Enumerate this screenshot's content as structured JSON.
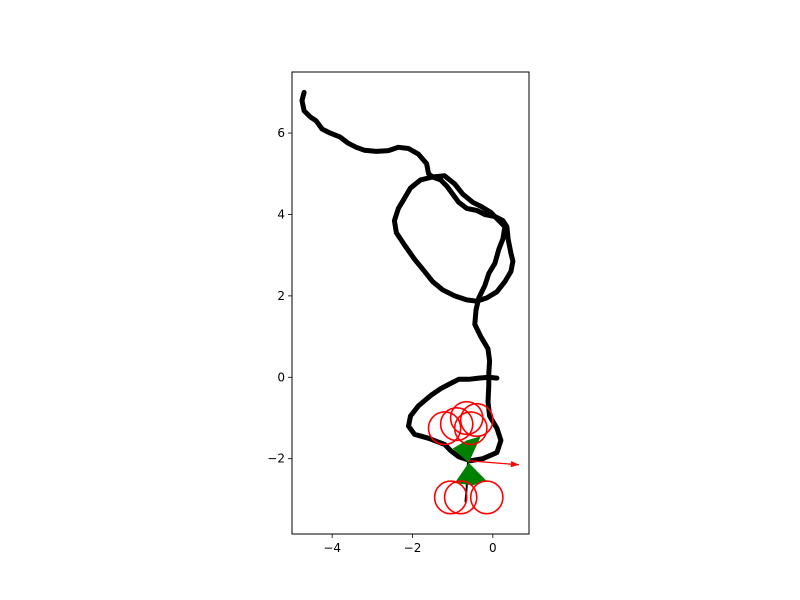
{
  "chart_data": {
    "type": "line",
    "title": "",
    "xlabel": "",
    "ylabel": "",
    "xlim": [
      -5.0,
      0.9
    ],
    "ylim": [
      -3.85,
      7.5
    ],
    "grid": false,
    "legend": "none",
    "x_ticks": [
      {
        "value": -4,
        "label": "−4"
      },
      {
        "value": -2,
        "label": "−2"
      },
      {
        "value": 0,
        "label": "0"
      }
    ],
    "y_ticks": [
      {
        "value": -2,
        "label": "−2"
      },
      {
        "value": 0,
        "label": "0"
      },
      {
        "value": 2,
        "label": "2"
      },
      {
        "value": 4,
        "label": "4"
      },
      {
        "value": 6,
        "label": "6"
      }
    ],
    "trajectory": {
      "color": "#000000",
      "points": [
        [
          -4.7,
          7.0
        ],
        [
          -4.75,
          6.8
        ],
        [
          -4.7,
          6.55
        ],
        [
          -4.55,
          6.4
        ],
        [
          -4.4,
          6.3
        ],
        [
          -4.25,
          6.1
        ],
        [
          -4.05,
          6.0
        ],
        [
          -3.8,
          5.9
        ],
        [
          -3.6,
          5.75
        ],
        [
          -3.4,
          5.65
        ],
        [
          -3.2,
          5.58
        ],
        [
          -2.9,
          5.55
        ],
        [
          -2.6,
          5.57
        ],
        [
          -2.35,
          5.65
        ],
        [
          -2.1,
          5.62
        ],
        [
          -1.85,
          5.48
        ],
        [
          -1.65,
          5.25
        ],
        [
          -1.6,
          5.0
        ],
        [
          -1.5,
          4.92
        ],
        [
          -1.3,
          4.85
        ],
        [
          -1.15,
          4.7
        ],
        [
          -1.0,
          4.5
        ],
        [
          -0.85,
          4.3
        ],
        [
          -0.65,
          4.15
        ],
        [
          -0.4,
          4.1
        ],
        [
          -0.2,
          4.0
        ],
        [
          0.05,
          3.95
        ],
        [
          0.25,
          3.85
        ],
        [
          0.35,
          3.7
        ],
        [
          0.38,
          3.4
        ],
        [
          0.45,
          3.05
        ],
        [
          0.5,
          2.85
        ],
        [
          0.45,
          2.6
        ],
        [
          0.3,
          2.35
        ],
        [
          0.1,
          2.1
        ],
        [
          -0.15,
          1.95
        ],
        [
          -0.4,
          1.87
        ],
        [
          -0.65,
          1.9
        ],
        [
          -0.95,
          2.0
        ],
        [
          -1.25,
          2.15
        ],
        [
          -1.5,
          2.35
        ],
        [
          -1.7,
          2.6
        ],
        [
          -1.95,
          2.9
        ],
        [
          -2.2,
          3.25
        ],
        [
          -2.4,
          3.55
        ],
        [
          -2.45,
          3.85
        ],
        [
          -2.35,
          4.15
        ],
        [
          -2.2,
          4.4
        ],
        [
          -2.05,
          4.65
        ],
        [
          -1.8,
          4.85
        ],
        [
          -1.5,
          4.92
        ],
        [
          -1.2,
          4.95
        ],
        [
          -0.95,
          4.75
        ],
        [
          -0.75,
          4.5
        ],
        [
          -0.5,
          4.3
        ],
        [
          -0.3,
          4.2
        ],
        [
          -0.05,
          4.05
        ],
        [
          0.15,
          3.85
        ],
        [
          0.3,
          3.7
        ],
        [
          0.25,
          3.4
        ],
        [
          0.15,
          3.15
        ],
        [
          0.05,
          2.8
        ],
        [
          -0.1,
          2.55
        ],
        [
          -0.2,
          2.25
        ],
        [
          -0.35,
          1.95
        ],
        [
          -0.42,
          1.65
        ],
        [
          -0.45,
          1.3
        ],
        [
          -0.3,
          1.0
        ],
        [
          -0.12,
          0.7
        ],
        [
          -0.08,
          0.4
        ],
        [
          -0.1,
          0.1
        ],
        [
          -0.1,
          -0.2
        ],
        [
          -0.12,
          -0.6
        ],
        [
          -0.08,
          -0.95
        ],
        [
          0.1,
          -1.25
        ],
        [
          0.2,
          -1.55
        ],
        [
          0.1,
          -1.85
        ],
        [
          -0.25,
          -2.0
        ],
        [
          -0.55,
          -2.05
        ],
        [
          -0.85,
          -1.95
        ],
        [
          -1.05,
          -1.8
        ],
        [
          -1.2,
          -1.65
        ],
        [
          -1.6,
          -1.5
        ],
        [
          -1.95,
          -1.4
        ],
        [
          -2.1,
          -1.2
        ],
        [
          -2.05,
          -0.95
        ],
        [
          -1.85,
          -0.7
        ],
        [
          -1.55,
          -0.45
        ],
        [
          -1.3,
          -0.28
        ],
        [
          -1.05,
          -0.15
        ],
        [
          -0.85,
          -0.05
        ],
        [
          -0.6,
          -0.05
        ],
        [
          -0.35,
          -0.02
        ],
        [
          -0.1,
          0.0
        ],
        [
          0.1,
          -0.02
        ]
      ],
      "tail": [
        [
          -0.62,
          -2.1
        ],
        [
          -0.65,
          -2.7
        ],
        [
          -0.68,
          -3.05
        ]
      ]
    },
    "hourglass": {
      "color": "#008000",
      "center": [
        -0.6,
        -2.1
      ],
      "vertices": [
        [
          -0.6,
          -2.1
        ],
        [
          -1.0,
          -1.75
        ],
        [
          -0.65,
          -1.55
        ],
        [
          -0.3,
          -1.45
        ],
        [
          -0.6,
          -2.1
        ],
        [
          -0.15,
          -2.55
        ],
        [
          -0.5,
          -2.65
        ],
        [
          -0.95,
          -2.6
        ]
      ]
    },
    "arrow": {
      "color": "#ff0000",
      "from": [
        -0.6,
        -2.05
      ],
      "to": [
        0.65,
        -2.15
      ]
    },
    "circles": {
      "color": "#ff0000",
      "radius": 0.4,
      "centers": [
        [
          -1.2,
          -1.25
        ],
        [
          -0.9,
          -1.15
        ],
        [
          -0.65,
          -1.0
        ],
        [
          -0.4,
          -1.05
        ],
        [
          -0.55,
          -1.25
        ],
        [
          -1.05,
          -2.95
        ],
        [
          -0.8,
          -2.95
        ],
        [
          -0.15,
          -2.95
        ]
      ]
    }
  }
}
